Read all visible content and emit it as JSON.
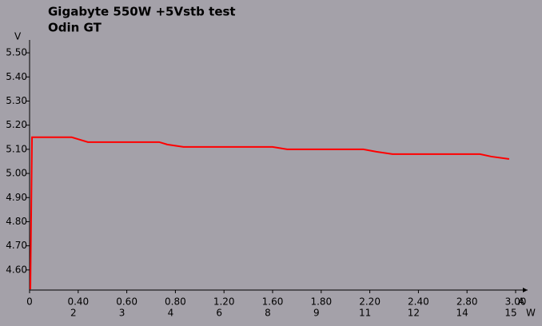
{
  "chart_data": {
    "type": "line",
    "title": "Gigabyte 550W    +5Vstb test",
    "subtitle": "Odin GT",
    "y_unit": "V",
    "x_unit": "A",
    "x2_unit": "W",
    "ylim": [
      4.52,
      5.55
    ],
    "yticks": [
      {
        "value": 4.6,
        "label": "4.60"
      },
      {
        "value": 4.7,
        "label": "4.70"
      },
      {
        "value": 4.8,
        "label": "4.80"
      },
      {
        "value": 4.9,
        "label": "4.90"
      },
      {
        "value": 5.0,
        "label": "5.00"
      },
      {
        "value": 5.1,
        "label": "5.10"
      },
      {
        "value": 5.2,
        "label": "5.20"
      },
      {
        "value": 5.3,
        "label": "5.30"
      },
      {
        "value": 5.4,
        "label": "5.40"
      },
      {
        "value": 5.5,
        "label": "5.50"
      }
    ],
    "xlim": [
      0,
      3
    ],
    "x_tick_labels": [
      "0",
      "0.40",
      "0.60",
      "0.80",
      "1.20",
      "1.60",
      "1.80",
      "2.20",
      "2.40",
      "2.80",
      "3.00"
    ],
    "x2_tick_labels": [
      null,
      "2",
      "3",
      "4",
      "6",
      "8",
      "9",
      "11",
      "12",
      "14",
      "15"
    ],
    "x": [
      0.005,
      0.015,
      0.26,
      0.31,
      0.36,
      0.8,
      0.85,
      0.95,
      1.5,
      1.59,
      2.06,
      2.14,
      2.24,
      2.78,
      2.85,
      2.96
    ],
    "series": [
      {
        "color": "#ff0000",
        "values": [
          4.52,
          5.15,
          5.15,
          5.14,
          5.13,
          5.13,
          5.12,
          5.11,
          5.11,
          5.1,
          5.1,
          5.09,
          5.08,
          5.08,
          5.07,
          5.06
        ]
      }
    ]
  }
}
